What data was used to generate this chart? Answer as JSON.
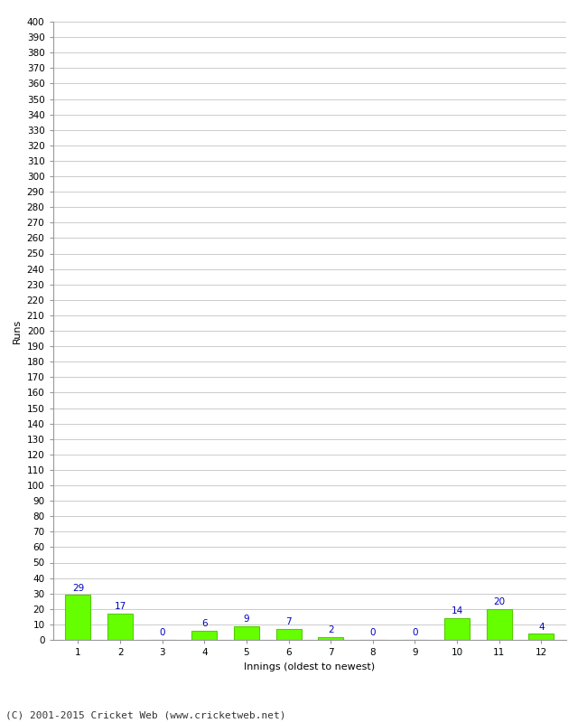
{
  "xlabel": "Innings (oldest to newest)",
  "ylabel": "Runs",
  "categories": [
    "1",
    "2",
    "3",
    "4",
    "5",
    "6",
    "7",
    "8",
    "9",
    "10",
    "11",
    "12"
  ],
  "values": [
    29,
    17,
    0,
    6,
    9,
    7,
    2,
    0,
    0,
    14,
    20,
    4
  ],
  "bar_color": "#66ff00",
  "bar_edge_color": "#55cc00",
  "label_color": "#0000bb",
  "ytick_min": 0,
  "ytick_max": 400,
  "ytick_step": 10,
  "background_color": "#ffffff",
  "grid_color": "#cccccc",
  "footer": "(C) 2001-2015 Cricket Web (www.cricketweb.net)",
  "label_fontsize": 7.5,
  "axis_label_fontsize": 8,
  "tick_fontsize": 7.5,
  "footer_fontsize": 8,
  "ylabel_fontsize": 8
}
